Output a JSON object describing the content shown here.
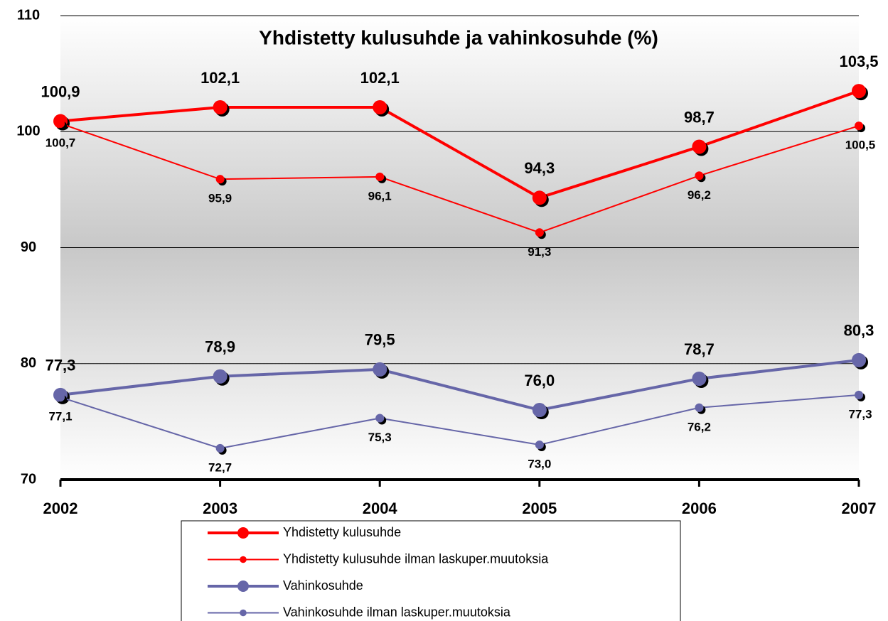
{
  "chart_data": {
    "type": "line",
    "title": "Yhdistetty kulusuhde ja vahinkosuhde (%)",
    "categories": [
      "2002",
      "2003",
      "2004",
      "2005",
      "2006",
      "2007"
    ],
    "series": [
      {
        "name": "Yhdistetty  kulusuhde",
        "color": "#ff0000",
        "values": [
          100.9,
          102.1,
          102.1,
          94.3,
          98.7,
          103.5
        ],
        "value_labels": [
          "100,9",
          "102,1",
          "102,1",
          "94,3",
          "98,7",
          "103,5"
        ]
      },
      {
        "name": "Yhdistetty  kulusuhde ilman laskuper.muutoksia",
        "color": "#ff0000",
        "values": [
          100.7,
          95.9,
          96.1,
          91.3,
          96.2,
          100.5
        ],
        "value_labels": [
          "100,7",
          "95,9",
          "96,1",
          "91,3",
          "96,2",
          "100,5"
        ]
      },
      {
        "name": "Vahinkosuhde",
        "color": "#6666a8",
        "values": [
          77.3,
          78.9,
          79.5,
          76.0,
          78.7,
          80.3
        ],
        "value_labels": [
          "77,3",
          "78,9",
          "79,5",
          "76,0",
          "78,7",
          "80,3"
        ]
      },
      {
        "name": "Vahinkosuhde ilman laskuper.muutoksia",
        "color": "#6666a8",
        "values": [
          77.1,
          72.7,
          75.3,
          73.0,
          76.2,
          77.3
        ],
        "value_labels": [
          "77,1",
          "72,7",
          "75,3",
          "73,0",
          "76,2",
          "77,3"
        ]
      }
    ],
    "ylim": [
      70,
      110
    ],
    "yticks": [
      70,
      80,
      90,
      100,
      110
    ],
    "grid": true,
    "legend": "bottom"
  }
}
